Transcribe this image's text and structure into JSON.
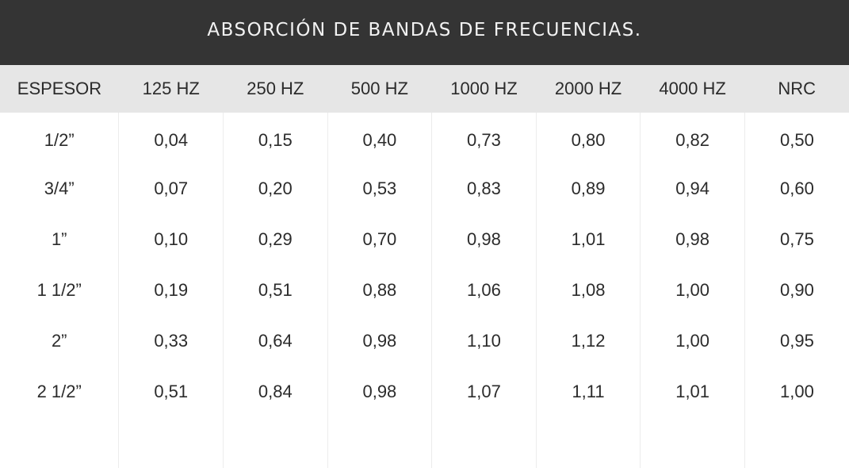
{
  "title": "ABSORCIÓN DE BANDAS DE FRECUENCIAS.",
  "columns": [
    "ESPESOR",
    "125 HZ",
    "250 HZ",
    "500 HZ",
    "1000 HZ",
    "2000 HZ",
    "4000 HZ",
    "NRC"
  ],
  "rows": [
    [
      "1/2”",
      "0,04",
      "0,15",
      "0,40",
      "0,73",
      "0,80",
      "0,82",
      "0,50"
    ],
    [
      "3/4”",
      "0,07",
      "0,20",
      "0,53",
      "0,83",
      "0,89",
      "0,94",
      "0,60"
    ],
    [
      "1”",
      "0,10",
      "0,29",
      "0,70",
      "0,98",
      "1,01",
      "0,98",
      "0,75"
    ],
    [
      "1 1/2”",
      "0,19",
      "0,51",
      "0,88",
      "1,06",
      "1,08",
      "1,00",
      "0,90"
    ],
    [
      "2”",
      "0,33",
      "0,64",
      "0,98",
      "1,10",
      "1,12",
      "1,00",
      "0,95"
    ],
    [
      "2 1/2”",
      "0,51",
      "0,84",
      "0,98",
      "1,07",
      "1,11",
      "1,01",
      "1,00"
    ]
  ],
  "colors": {
    "title_bg": "#343434",
    "title_text": "#f2f2f2",
    "header_bg": "#e6e6e6",
    "text": "#2b2b2b",
    "divider": "#ececec"
  }
}
